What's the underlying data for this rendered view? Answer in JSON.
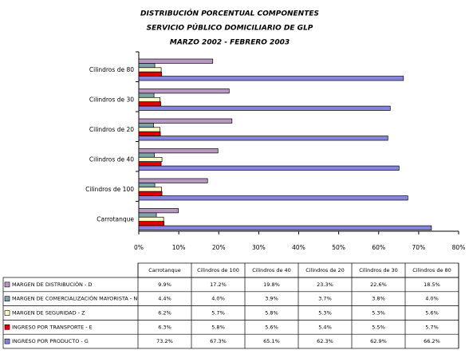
{
  "chart_data": {
    "type": "bar",
    "orientation": "horizontal",
    "title": [
      "DISTRIBUCIÓN PORCENTUAL COMPONENTES",
      "SERVICIO PÚBLICO DOMICILIARIO DE GLP",
      "MARZO 2002 - FEBRERO 2003"
    ],
    "categories": [
      "Carrotanque",
      "Cilindros de 100",
      "Cilindros de 40",
      "Cilindros de 20",
      "Cilindros de 30",
      "Cilindros de 80"
    ],
    "series": [
      {
        "name": "MARGEN DE DISTRIBUCIÓN - D",
        "color": "#b898c0",
        "values": [
          9.9,
          17.2,
          19.8,
          23.3,
          22.6,
          18.5
        ],
        "value_labels": [
          "9.9%",
          "17.2%",
          "19.8%",
          "23.3%",
          "22.6%",
          "18.5%"
        ]
      },
      {
        "name": "MARGEN DE COMERCIALIZACIÓN MAYORISTA - N",
        "color": "#7fa3a8",
        "values": [
          4.4,
          4.0,
          3.9,
          3.7,
          3.8,
          4.0
        ],
        "value_labels": [
          "4.4%",
          "4.0%",
          "3.9%",
          "3.7%",
          "3.8%",
          "4.0%"
        ]
      },
      {
        "name": "MARGEN DE SEGURIDAD - Z",
        "color": "#ffffcc",
        "values": [
          6.2,
          5.7,
          5.8,
          5.3,
          5.3,
          5.6
        ],
        "value_labels": [
          "6.2%",
          "5.7%",
          "5.8%",
          "5.3%",
          "5.3%",
          "5.6%"
        ]
      },
      {
        "name": "INGRESO POR TRANSPORTE - E",
        "color": "#e00000",
        "values": [
          6.3,
          5.8,
          5.6,
          5.4,
          5.5,
          5.7
        ],
        "value_labels": [
          "6.3%",
          "5.8%",
          "5.6%",
          "5.4%",
          "5.5%",
          "5.7%"
        ]
      },
      {
        "name": "INGRESO POR PRODUCTO - G",
        "color": "#8585dd",
        "values": [
          73.2,
          67.3,
          65.1,
          62.3,
          62.9,
          66.2
        ],
        "value_labels": [
          "73.2%",
          "67.3%",
          "65.1%",
          "62.3%",
          "62.9%",
          "66.2%"
        ]
      }
    ],
    "xlim": [
      0,
      80
    ],
    "xticks": [
      {
        "value": 0,
        "label": "0%"
      },
      {
        "value": 10,
        "label": "10%"
      },
      {
        "value": 20,
        "label": "20%"
      },
      {
        "value": 30,
        "label": "30%"
      },
      {
        "value": 40,
        "label": "40%"
      },
      {
        "value": 50,
        "label": "50%"
      },
      {
        "value": 60,
        "label": "60%"
      },
      {
        "value": 70,
        "label": "70%"
      },
      {
        "value": 80,
        "label": "80%"
      }
    ],
    "grid": false
  }
}
